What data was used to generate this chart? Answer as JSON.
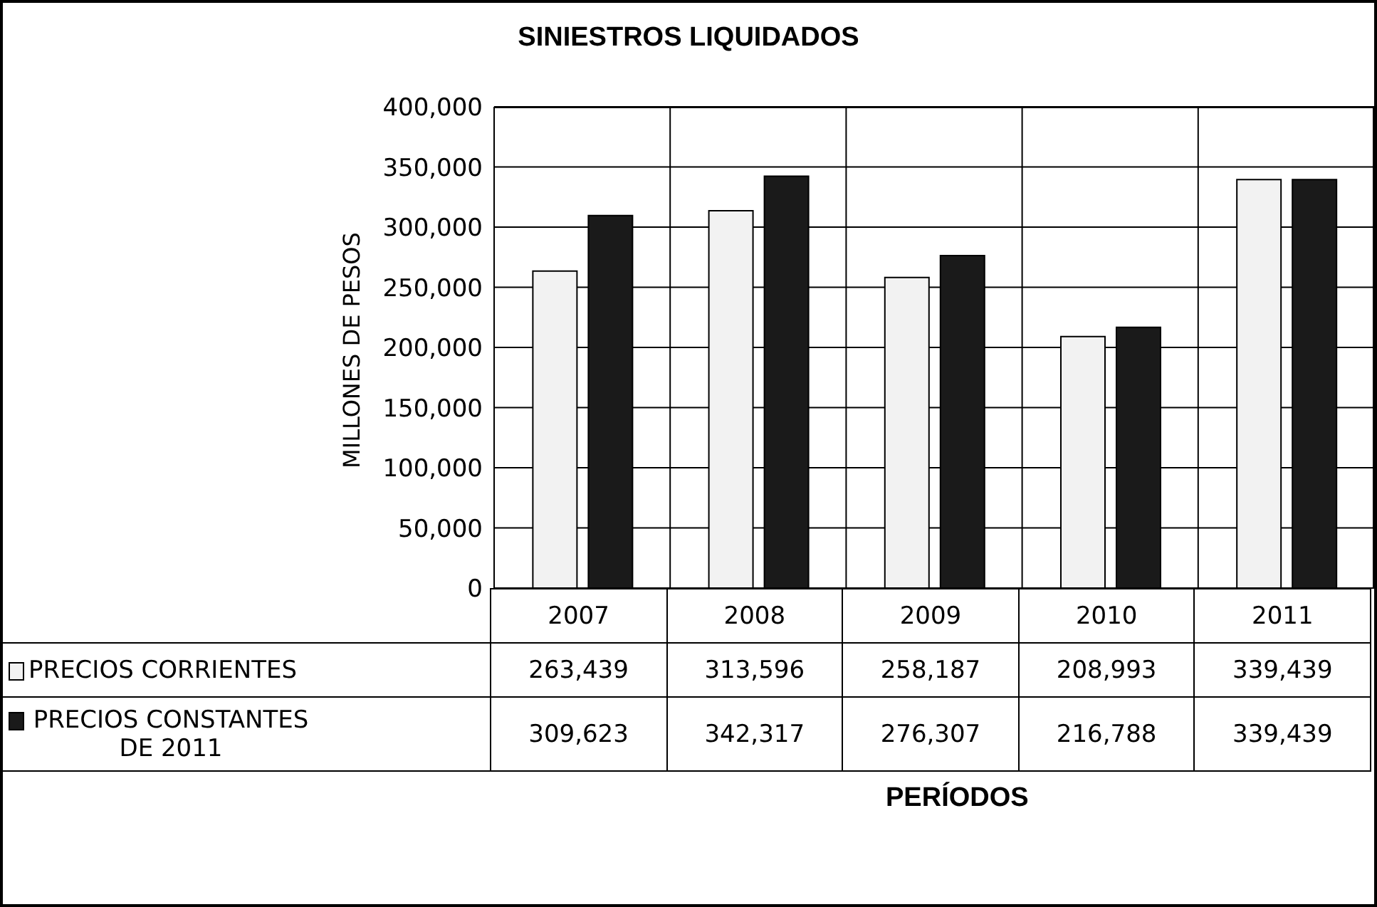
{
  "chart_data": {
    "type": "bar",
    "title": "SINIESTROS LIQUIDADOS",
    "ylabel": "MILLONES DE PESOS",
    "annotations": [
      "PERÍODOS"
    ],
    "categories": [
      "2007",
      "2008",
      "2009",
      "2010",
      "2011"
    ],
    "series": [
      {
        "name": "PRECIOS CORRIENTES",
        "color": "#f2f2f2",
        "values": [
          263439,
          313596,
          258187,
          208993,
          339439
        ],
        "value_labels": [
          "263,439",
          "313,596",
          "258,187",
          "208,993",
          "339,439"
        ]
      },
      {
        "name": "PRECIOS CONSTANTES DE 2011",
        "color": "#1a1a1a",
        "values": [
          309623,
          342317,
          276307,
          216788,
          339439
        ],
        "value_labels": [
          "309,623",
          "342,317",
          "276,307",
          "216,788",
          "339,439"
        ]
      }
    ],
    "ylim": [
      0,
      400000
    ],
    "yticks": [
      0,
      {
        "value": 50000,
        "label": "50,000"
      },
      {
        "value": 100000,
        "label": "100,000"
      },
      {
        "value": 150000,
        "label": "150,000"
      },
      {
        "value": 200000,
        "label": "200,000"
      },
      {
        "value": 250000,
        "label": "250,000"
      },
      {
        "value": 300000,
        "label": "300,000"
      },
      {
        "value": 350000,
        "label": "350,000"
      },
      {
        "value": 400000,
        "label": "400,000"
      }
    ],
    "grid": true,
    "legend": "bottom"
  }
}
